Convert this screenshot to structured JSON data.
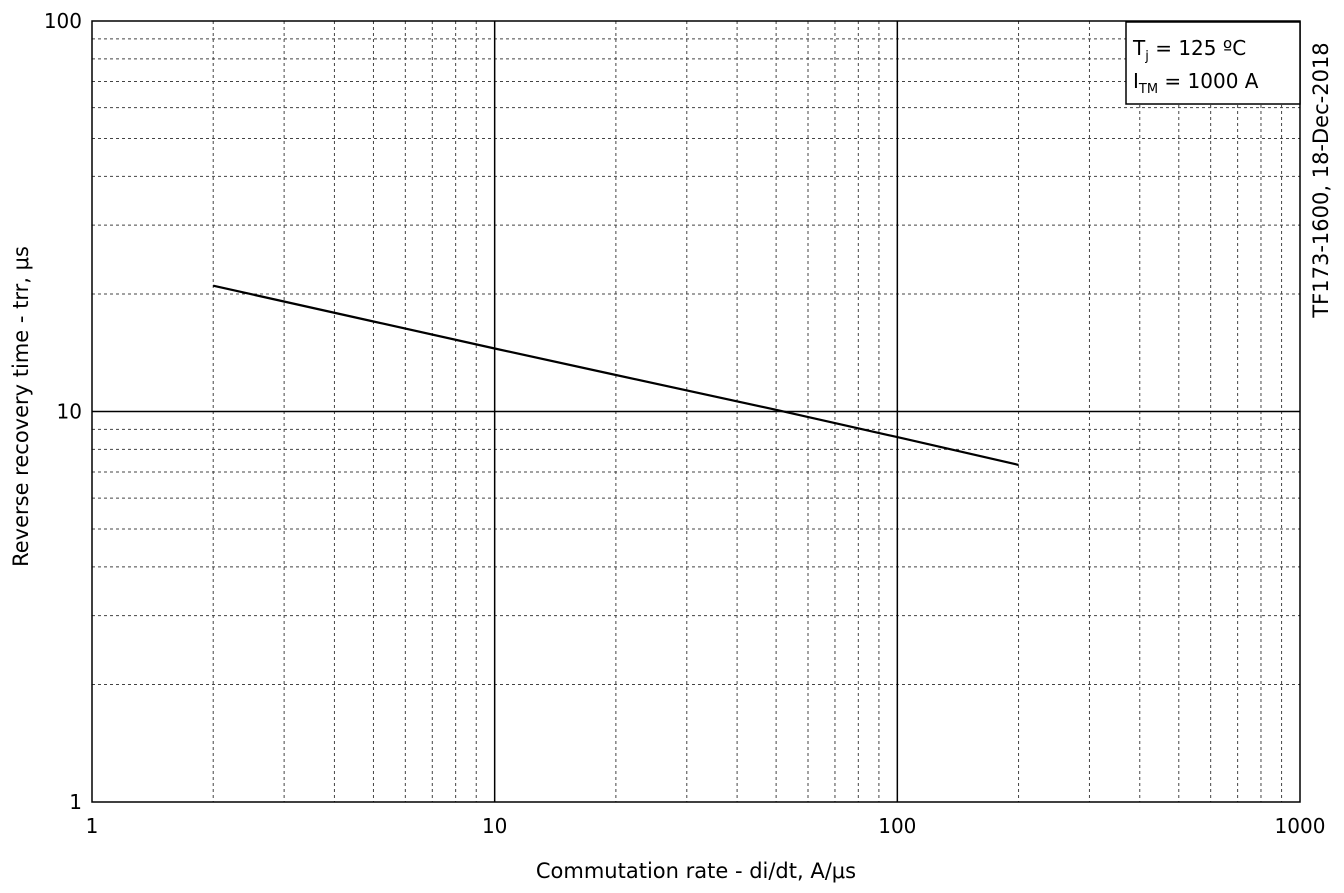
{
  "chart_data": {
    "type": "line",
    "xlabel": "Commutation rate - di/dt, A/μs",
    "ylabel": "Reverse recovery time - trr, μs",
    "x_scale": "log",
    "y_scale": "log",
    "xlim": [
      1,
      1000
    ],
    "ylim": [
      1,
      100
    ],
    "grid": true,
    "x_tick_labels": [
      "1",
      "10",
      "100",
      "1000"
    ],
    "y_tick_labels": [
      "1",
      "10",
      "100"
    ],
    "side_label": "TF173-1600, 18-Dec-2018",
    "annotation": {
      "line1": {
        "symbol": "T",
        "subscript": "j",
        "value": " = 125 ºC"
      },
      "line2": {
        "symbol": "I",
        "subscript": "TM",
        "value": " = 1000 A"
      }
    },
    "series": [
      {
        "x": [
          2,
          5,
          10,
          20,
          50,
          100,
          200
        ],
        "y": [
          21.0,
          17.0,
          14.5,
          12.4,
          10.1,
          8.6,
          7.3
        ]
      }
    ]
  }
}
